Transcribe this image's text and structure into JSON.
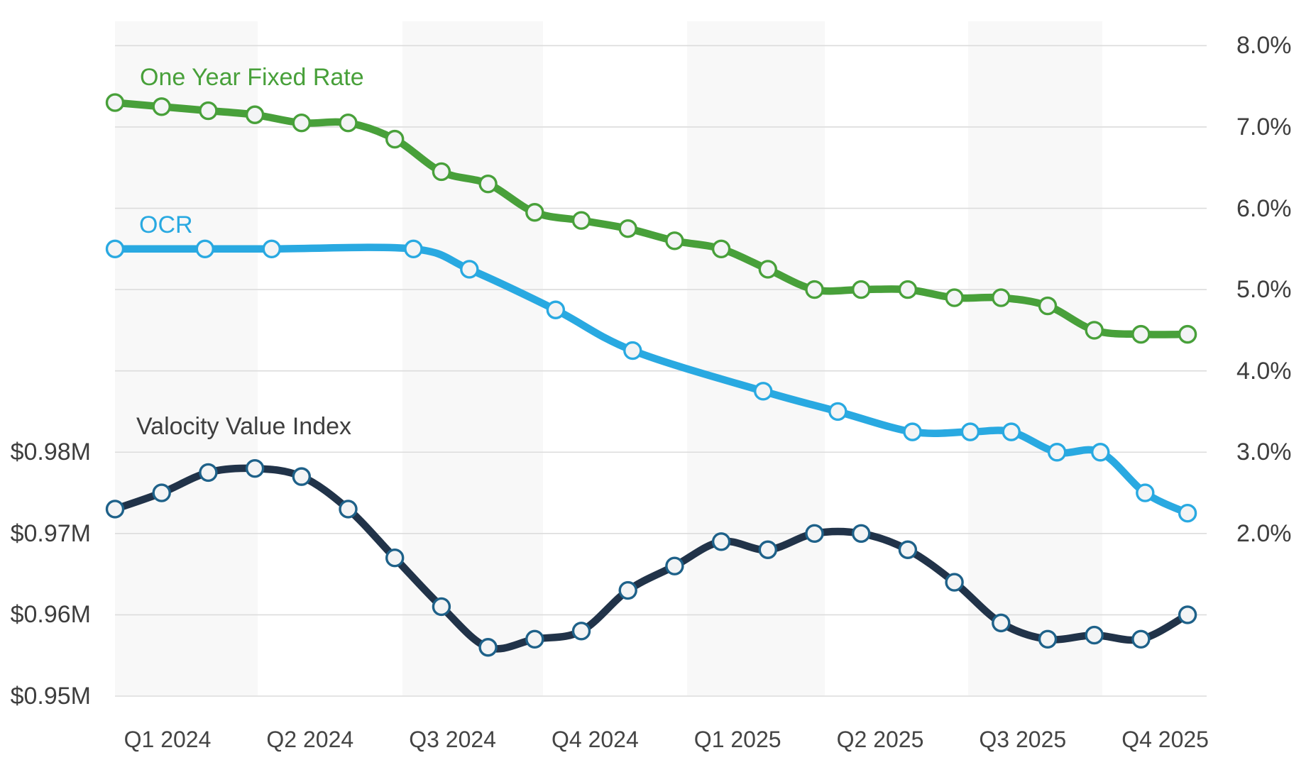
{
  "chart_data": {
    "type": "line",
    "title": "",
    "x_axis": {
      "categories": [
        "Q1 2024",
        "Q2 2024",
        "Q3 2024",
        "Q4 2024",
        "Q1 2025",
        "Q2 2025",
        "Q3 2025",
        "Q4 2025"
      ],
      "unit": "month",
      "months_shown": 24
    },
    "left_axis": {
      "ticks": [
        "$0.98M",
        "$0.97M",
        "$0.96M",
        "$0.95M"
      ],
      "tick_values": [
        0.98,
        0.97,
        0.96,
        0.95
      ],
      "min": 0.95,
      "max": 0.98
    },
    "right_axis": {
      "ticks": [
        "8.0%",
        "7.0%",
        "6.0%",
        "5.0%",
        "4.0%",
        "3.0%",
        "2.0%"
      ],
      "tick_values": [
        8.0,
        7.0,
        6.0,
        5.0,
        4.0,
        3.0,
        2.0
      ],
      "min": 2.0,
      "max": 8.0
    },
    "grid": true,
    "legend": "inline-labels",
    "shaded_quarter_bands": [
      "Q1 2024",
      "Q3 2024",
      "Q1 2025",
      "Q3 2025"
    ],
    "series": [
      {
        "name": "One Year Fixed Rate",
        "axis": "percent",
        "color": "#48a03a",
        "marker_ring": "#48a03a",
        "x_months": [
          0,
          1,
          2,
          3,
          4,
          5,
          6,
          7,
          8,
          9,
          10,
          11,
          12,
          13,
          14,
          15,
          16,
          17,
          18,
          19,
          20,
          21,
          22,
          23
        ],
        "values": [
          7.3,
          7.25,
          7.2,
          7.15,
          7.05,
          7.05,
          6.85,
          6.45,
          6.3,
          5.95,
          5.85,
          5.75,
          5.6,
          5.5,
          5.25,
          5.0,
          5.0,
          5.0,
          4.9,
          4.9,
          4.8,
          4.5,
          4.45,
          4.45
        ]
      },
      {
        "name": "OCR",
        "axis": "percent",
        "color": "#29a9e1",
        "marker_ring": "#29a9e1",
        "x_months": [
          0,
          1.93,
          3.36,
          6.4,
          7.6,
          9.45,
          11.1,
          13.9,
          15.5,
          17.1,
          18.34,
          19.22,
          20.2,
          21.13,
          22.09,
          23
        ],
        "values": [
          5.5,
          5.5,
          5.5,
          5.5,
          5.25,
          4.75,
          4.25,
          3.75,
          3.5,
          3.25,
          3.25,
          3.25,
          3.0,
          3.0,
          2.5,
          2.25
        ]
      },
      {
        "name": "Valocity Value Index",
        "axis": "dollars_m",
        "color": "#213349",
        "marker_ring": "#1e6189",
        "label_color": "#3e3e3e",
        "x_months": [
          0,
          1,
          2,
          3,
          4,
          5,
          6,
          7,
          8,
          9,
          10,
          11,
          12,
          13,
          14,
          15,
          16,
          17,
          18,
          19,
          20,
          21,
          22,
          23
        ],
        "values": [
          0.973,
          0.975,
          0.9775,
          0.978,
          0.977,
          0.973,
          0.967,
          0.961,
          0.956,
          0.957,
          0.958,
          0.963,
          0.966,
          0.969,
          0.968,
          0.97,
          0.97,
          0.968,
          0.964,
          0.959,
          0.957,
          0.9575,
          0.957,
          0.96
        ]
      }
    ],
    "colors": {
      "band": "#f8f8f8",
      "grid": "#dcdcdc",
      "marker_fill": "#f3f4f5",
      "axis_text": "#3e3e3e",
      "background": "#ffffff"
    }
  }
}
